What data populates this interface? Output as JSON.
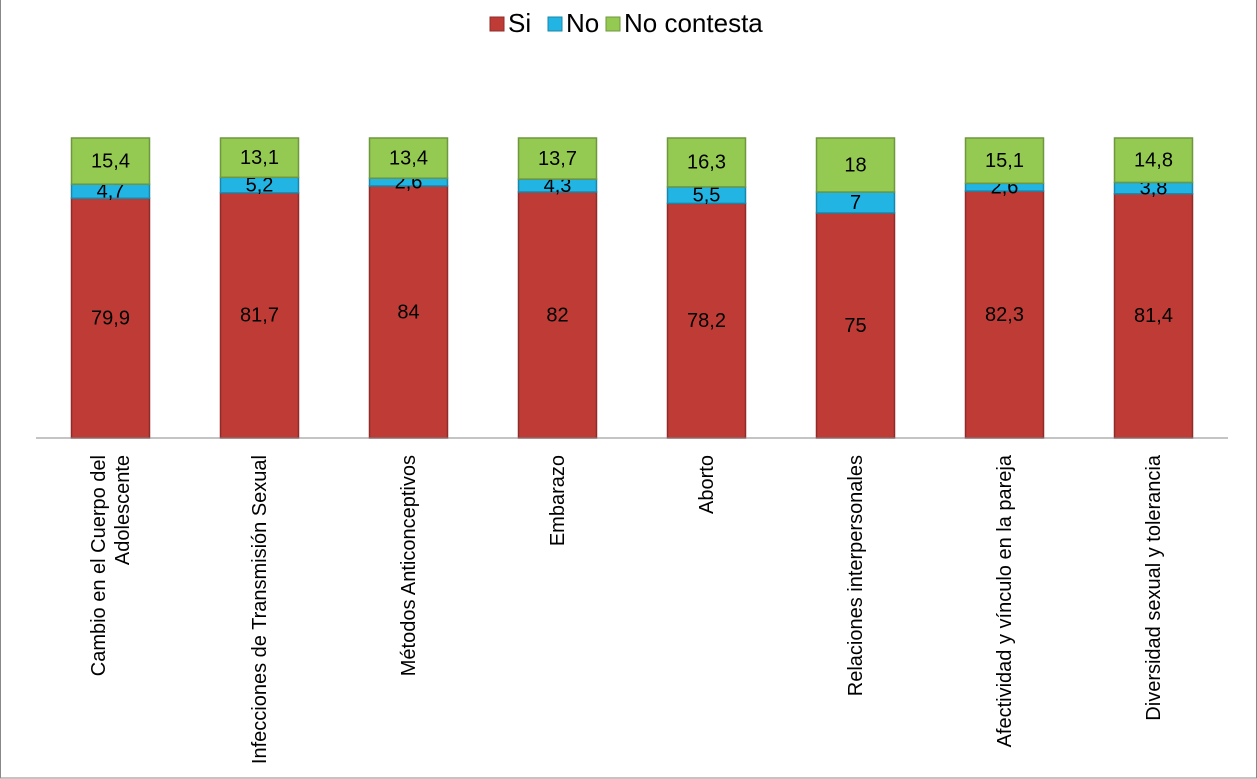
{
  "chart_data": {
    "type": "stacked_bar",
    "categories": [
      "Cambio en el Cuerpo del Adolescente",
      "Infecciones de Transmisión Sexual",
      "Métodos Anticonceptivos",
      "Embarazo",
      "Aborto",
      "Relaciones interpersonales",
      "Afectividad y vínculo en la pareja",
      "Diversidad sexual y tolerancia"
    ],
    "series": [
      {
        "name": "Si",
        "color": "#be3b36",
        "values": [
          79.9,
          81.7,
          84,
          82,
          78.2,
          75,
          82.3,
          81.4
        ],
        "value_labels": [
          "79,9",
          "81,7",
          "84",
          "82",
          "78,2",
          "75",
          "82,3",
          "81,4"
        ]
      },
      {
        "name": "No",
        "color": "#22b4e2",
        "values": [
          4.7,
          5.2,
          2.6,
          4.3,
          5.5,
          7,
          2.6,
          3.8
        ],
        "value_labels": [
          "4,7",
          "5,2",
          "2,6",
          "4,3",
          "5,5",
          "7",
          "2,6",
          "3,8"
        ]
      },
      {
        "name": "No contesta",
        "color": "#94c952",
        "values": [
          15.4,
          13.1,
          13.4,
          13.7,
          16.3,
          18,
          15.1,
          14.8
        ],
        "value_labels": [
          "15,4",
          "13,1",
          "13,4",
          "13,7",
          "16,3",
          "18",
          "15,1",
          "14,8"
        ]
      }
    ],
    "ylim": [
      0,
      100
    ],
    "legend": "top"
  }
}
